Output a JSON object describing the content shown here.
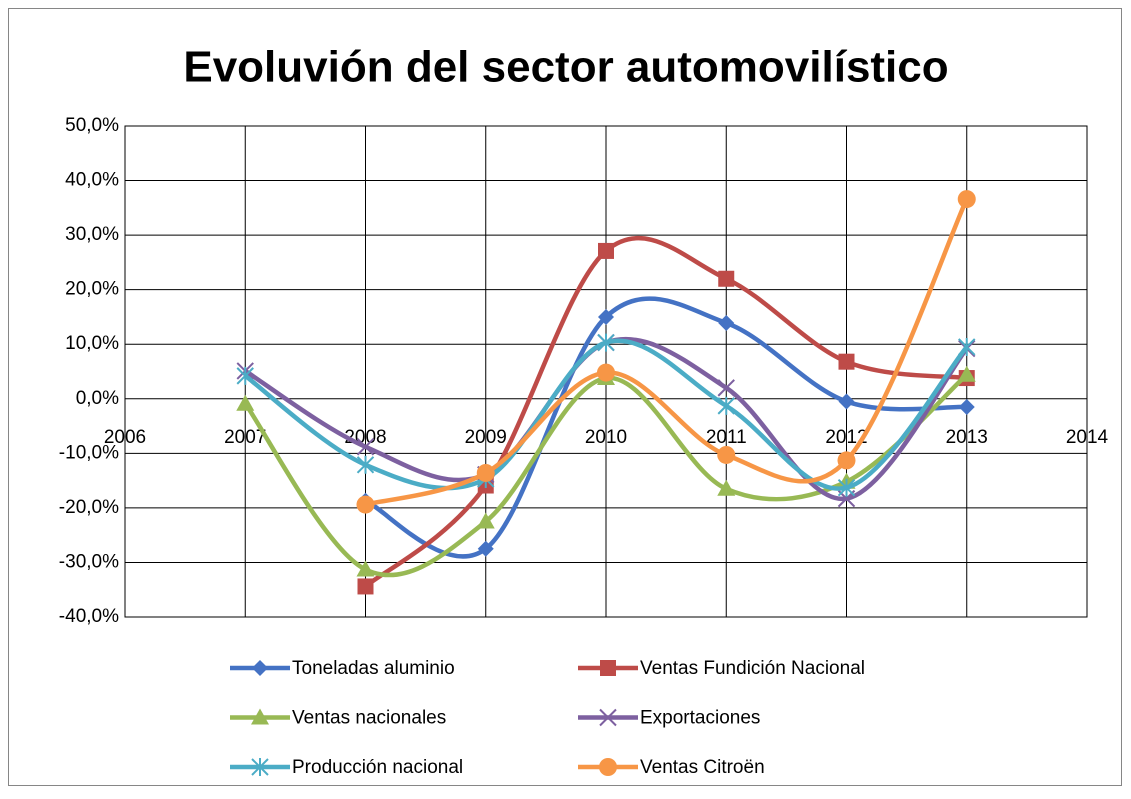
{
  "chart_data": {
    "type": "line",
    "title": "Evoluvión del sector automovilístico",
    "x": [
      2007,
      2008,
      2009,
      2010,
      2011,
      2012,
      2013
    ],
    "xlim": [
      2006,
      2014
    ],
    "xticks": [
      2006,
      2007,
      2008,
      2009,
      2010,
      2011,
      2012,
      2013,
      2014
    ],
    "ylim": [
      -40,
      50
    ],
    "yticks": [
      {
        "value": -40,
        "label": "-40,0%"
      },
      {
        "value": -30,
        "label": "-30,0%"
      },
      {
        "value": -20,
        "label": "-20,0%"
      },
      {
        "value": -10,
        "label": "-10,0%"
      },
      {
        "value": 0,
        "label": "0,0%"
      },
      {
        "value": 10,
        "label": "10,0%"
      },
      {
        "value": 20,
        "label": "20,0%"
      },
      {
        "value": 30,
        "label": "30,0%"
      },
      {
        "value": 40,
        "label": "40,0%"
      },
      {
        "value": 50,
        "label": "50,0%"
      }
    ],
    "grid": true,
    "smooth": true,
    "legend": "bottom",
    "series": [
      {
        "name": "Toneladas aluminio",
        "color": "#4472c4",
        "marker": "diamond",
        "values": [
          null,
          -18.7,
          -27.5,
          15.0,
          13.9,
          -0.5,
          -1.5
        ]
      },
      {
        "name": "Ventas Fundición Nacional",
        "color": "#be4b48",
        "marker": "square",
        "values": [
          null,
          -34.4,
          -15.9,
          27.1,
          22.0,
          6.8,
          3.8
        ]
      },
      {
        "name": "Ventas nacionales",
        "color": "#98b954",
        "marker": "triangle",
        "values": [
          -0.9,
          -31.3,
          -22.5,
          3.8,
          -16.5,
          -15.2,
          4.4
        ]
      },
      {
        "name": "Exportaciones",
        "color": "#7d60a0",
        "marker": "cross",
        "values": [
          5.1,
          -8.8,
          -13.9,
          10.3,
          2.0,
          -18.3,
          9.2
        ]
      },
      {
        "name": "Producción nacional",
        "color": "#4bacc6",
        "marker": "star",
        "values": [
          4.2,
          -12.1,
          -14.7,
          10.3,
          -1.3,
          -16.3,
          9.5
        ]
      },
      {
        "name": "Ventas Citroën",
        "color": "#f79646",
        "marker": "circle",
        "values": [
          null,
          -19.4,
          -13.6,
          4.8,
          -10.3,
          -11.3,
          36.6
        ]
      }
    ]
  }
}
